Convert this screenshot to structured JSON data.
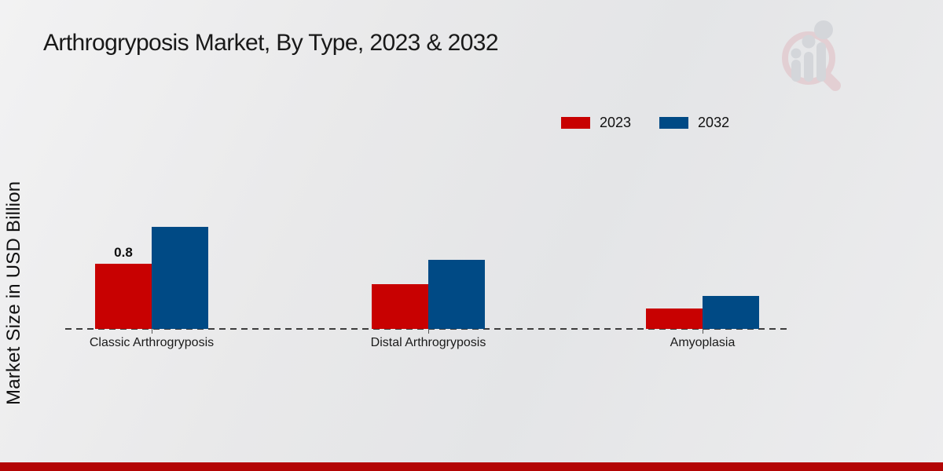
{
  "title": "Arthrogryposis Market, By Type, 2023 & 2032",
  "y_axis": {
    "label": "Market Size in USD Billion"
  },
  "legend": {
    "items": [
      {
        "label": "2023",
        "color": "#c80101"
      },
      {
        "label": "2032",
        "color": "#004a85"
      }
    ]
  },
  "footer": {
    "accent_color": "#b30505"
  },
  "logo": {
    "ring_color": "#e0bcc2",
    "bar_color": "#c5c9cf"
  },
  "chart_data": {
    "type": "bar",
    "title": "Arthrogryposis Market, By Type, 2023 & 2032",
    "categories": [
      "Classic Arthrogryposis",
      "Distal Arthrogryposis",
      "Amyoplasia"
    ],
    "series": [
      {
        "name": "2023",
        "color": "#c80101",
        "values": [
          0.8,
          0.55,
          0.25
        ]
      },
      {
        "name": "2032",
        "color": "#004a85",
        "values": [
          1.25,
          0.85,
          0.4
        ]
      }
    ],
    "xlabel": "",
    "ylabel": "Market Size in USD Billion",
    "ylim": [
      0,
      1.4
    ],
    "grid": false,
    "legend_position": "top-right",
    "baseline_style": "dashed",
    "annotations": [
      {
        "category_index": 0,
        "series_index": 0,
        "text": "0.8"
      }
    ]
  }
}
